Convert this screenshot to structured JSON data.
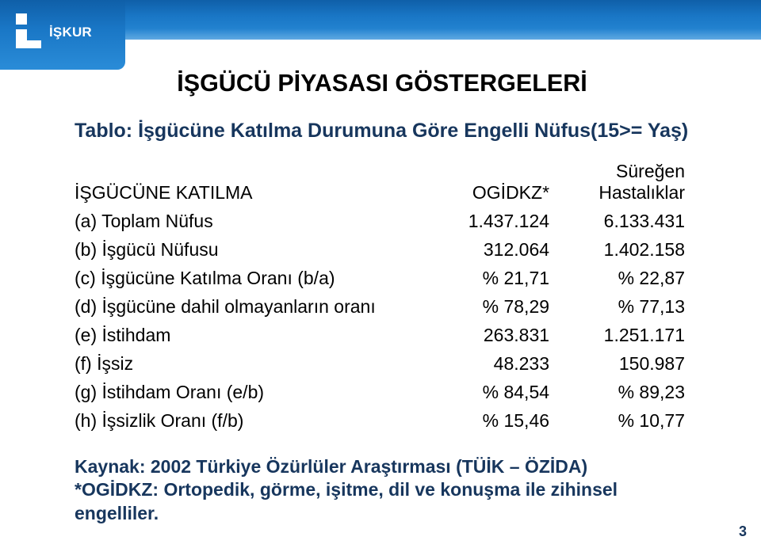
{
  "logo": {
    "text": "İŞKUR"
  },
  "title": "İŞGÜCÜ PİYASASI GÖSTERGELERİ",
  "subtitle": "Tablo: İşgücüne Katılma Durumuna Göre Engelli Nüfus(15>= Yaş)",
  "table": {
    "header": {
      "label": "İŞGÜCÜNE KATILMA",
      "col1": "OGİDKZ*",
      "col2": "Süreğen Hastalıklar"
    },
    "rows": [
      {
        "label": "(a) Toplam Nüfus",
        "v1": "1.437.124",
        "v2": "6.133.431"
      },
      {
        "label": "(b) İşgücü Nüfusu",
        "v1": "312.064",
        "v2": "1.402.158"
      },
      {
        "label": "(c) İşgücüne Katılma Oranı (b/a)",
        "v1": "% 21,71",
        "v2": "% 22,87"
      },
      {
        "label": "(d) İşgücüne dahil olmayanların oranı",
        "v1": "% 78,29",
        "v2": "% 77,13"
      },
      {
        "label": "(e) İstihdam",
        "v1": "263.831",
        "v2": "1.251.171"
      },
      {
        "label": "(f) İşsiz",
        "v1": "48.233",
        "v2": "150.987"
      },
      {
        "label": "(g) İstihdam Oranı (e/b)",
        "v1": "% 84,54",
        "v2": "% 89,23"
      },
      {
        "label": "(h) İşsizlik Oranı (f/b)",
        "v1": "% 15,46",
        "v2": "% 10,77"
      }
    ]
  },
  "footnote_line1": "Kaynak: 2002 Türkiye Özürlüler Araştırması (TÜİK – ÖZİDA)",
  "footnote_line2": "*OGİDKZ: Ortopedik,  görme,  işitme, dil ve konuşma ile zihinsel engelliler.",
  "page_number": "3",
  "colors": {
    "header_gradient_top": "#0f5fa8",
    "header_gradient_mid": "#1976c5",
    "header_gradient_bot": "#2a8cd8",
    "accent_text": "#17365d",
    "body_text": "#000000",
    "background": "#ffffff"
  },
  "typography": {
    "title_pt": 23,
    "subtitle_pt": 19,
    "body_pt": 17
  }
}
